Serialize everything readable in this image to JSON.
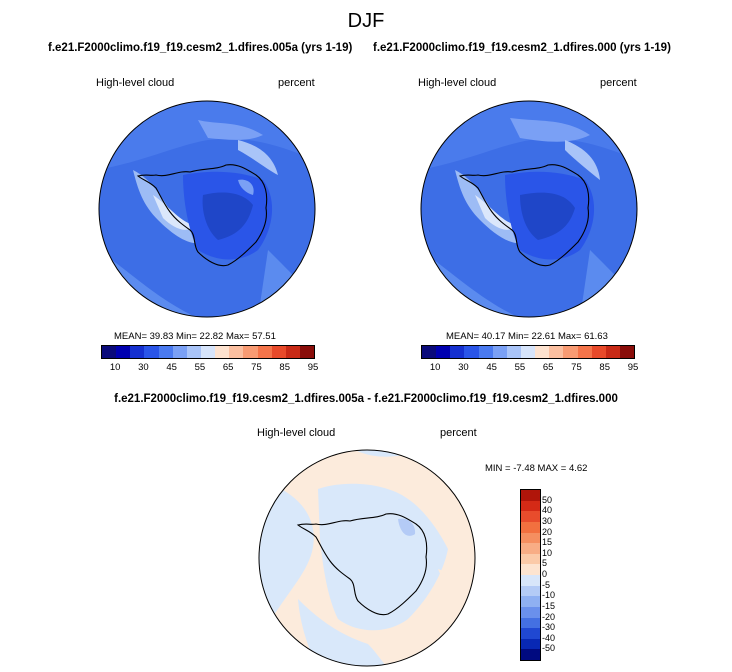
{
  "season": "DJF",
  "panels": [
    {
      "title": "f.e21.F2000climo.f19_f19.cesm2_1.dfires.005a (yrs 1-19)",
      "variable": "High-level cloud",
      "units": "percent",
      "stats": "MEAN=  39.83  Min=  22.82  Max=  57.51"
    },
    {
      "title": "f.e21.F2000climo.f19_f19.cesm2_1.dfires.000 (yrs 1-19)",
      "variable": "High-level cloud",
      "units": "percent",
      "stats": "MEAN=  40.17  Min=  22.61  Max=  61.63"
    }
  ],
  "colorbar_abs": {
    "ticks": [
      "10",
      "30",
      "45",
      "55",
      "65",
      "75",
      "85",
      "95"
    ],
    "colors": [
      "#0a0a7a",
      "#0000b0",
      "#1530d0",
      "#2a55e8",
      "#4a7af0",
      "#7aa0f5",
      "#a9c4f8",
      "#d6e4fb",
      "#fde2cf",
      "#fbbfa0",
      "#f89b73",
      "#f4744a",
      "#e84a2a",
      "#c82a16",
      "#8a0d0a"
    ]
  },
  "difference": {
    "title": "f.e21.F2000climo.f19_f19.cesm2_1.dfires.005a - f.e21.F2000climo.f19_f19.cesm2_1.dfires.000",
    "variable": "High-level cloud",
    "units": "percent",
    "stats": "MIN = -7.48 MAX =   4.62",
    "ticks": [
      "50",
      "40",
      "30",
      "20",
      "15",
      "10",
      "5",
      "0",
      "-5",
      "-10",
      "-15",
      "-20",
      "-30",
      "-40",
      "-50"
    ],
    "colors": [
      "#b0150a",
      "#d42a16",
      "#e84c2c",
      "#f2703f",
      "#f58f60",
      "#f8ad85",
      "#fbcaa8",
      "#fde4d0",
      "#d8e6fa",
      "#b4cbf6",
      "#8fb0f2",
      "#6a90ec",
      "#4470e2",
      "#2048d2",
      "#0828b4",
      "#000a80"
    ]
  },
  "colors": {
    "ocean_blue": "#3d6ee6",
    "ocean_light": "#5b8bef",
    "ocean_pale": "#9dbcf5",
    "ocean_whiteish": "#dbe7fb",
    "land_dark": "#1f46c8",
    "diff_neutral": "#fcebdc",
    "diff_light": "#d9e8fa"
  }
}
